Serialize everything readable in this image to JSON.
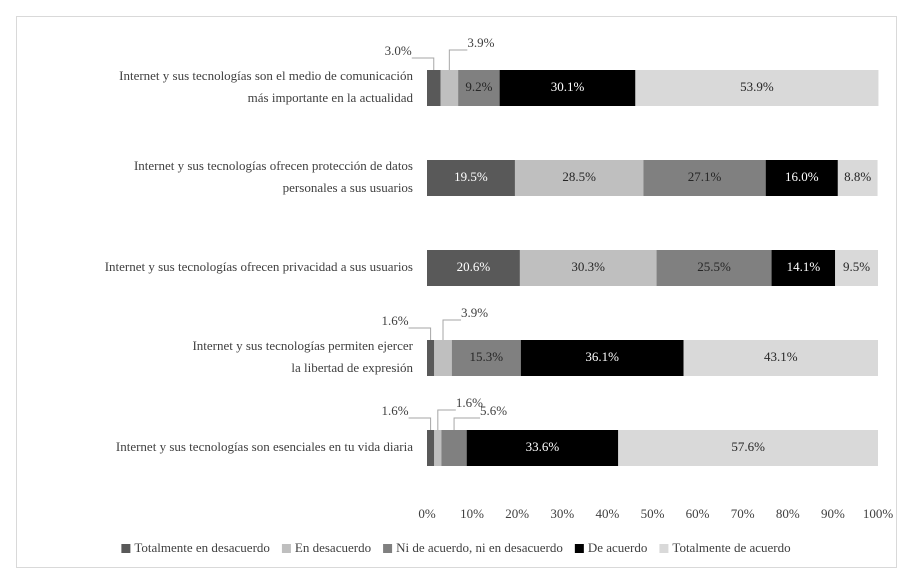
{
  "chart_data": {
    "type": "stacked-bar-horizontal",
    "categories": [
      [
        "Internet y sus tecnologías son el medio de comunicación",
        "más importante en la actualidad"
      ],
      [
        "Internet y sus tecnologías ofrecen protección de datos",
        "personales a sus usuarios"
      ],
      [
        "Internet y sus tecnologías ofrecen privacidad a sus usuarios"
      ],
      [
        "Internet y sus tecnologías permiten ejercer",
        "la libertad de expresión"
      ],
      [
        "Internet y sus tecnologías son esenciales en tu vida diaria"
      ]
    ],
    "series": [
      {
        "name": "Totalmente en desacuerdo",
        "color": "#595959",
        "label_color": "#ffffff",
        "values": [
          3.0,
          19.5,
          20.6,
          1.6,
          1.6
        ],
        "value_labels": [
          "3.0%",
          "19.5%",
          "20.6%",
          "1.6%",
          "1.6%"
        ]
      },
      {
        "name": "En desacuerdo",
        "color": "#bfbfbf",
        "label_color": "#262626",
        "values": [
          3.9,
          28.5,
          30.3,
          3.9,
          1.6
        ],
        "value_labels": [
          "3.9%",
          "28.5%",
          "30.3%",
          "3.9%",
          "1.6%"
        ]
      },
      {
        "name": "Ni de acuerdo, ni en desacuerdo",
        "color": "#808080",
        "label_color": "#262626",
        "values": [
          9.2,
          27.1,
          25.5,
          15.3,
          5.6
        ],
        "value_labels": [
          "9.2%",
          "27.1%",
          "25.5%",
          "15.3%",
          "5.6%"
        ]
      },
      {
        "name": "De acuerdo",
        "color": "#000000",
        "label_color": "#ffffff",
        "values": [
          30.1,
          16.0,
          14.1,
          36.1,
          33.6
        ],
        "value_labels": [
          "30.1%",
          "16.0%",
          "14.1%",
          "36.1%",
          "33.6%"
        ]
      },
      {
        "name": "Totalmente de acuerdo",
        "color": "#d9d9d9",
        "label_color": "#262626",
        "values": [
          53.9,
          8.8,
          9.5,
          43.1,
          57.6
        ],
        "value_labels": [
          "53.9%",
          "8.8%",
          "9.5%",
          "43.1%",
          "57.6%"
        ]
      }
    ],
    "xlim": [
      0,
      100
    ],
    "xticks": [
      {
        "value": 0,
        "label": "0%"
      },
      {
        "value": 10,
        "label": "10%"
      },
      {
        "value": 20,
        "label": "20%"
      },
      {
        "value": 30,
        "label": "30%"
      },
      {
        "value": 40,
        "label": "40%"
      },
      {
        "value": 50,
        "label": "50%"
      },
      {
        "value": 60,
        "label": "60%"
      },
      {
        "value": 70,
        "label": "70%"
      },
      {
        "value": 80,
        "label": "80%"
      },
      {
        "value": 90,
        "label": "90%"
      },
      {
        "value": 100,
        "label": "100%"
      }
    ],
    "grid": false,
    "legend": "bottom"
  }
}
